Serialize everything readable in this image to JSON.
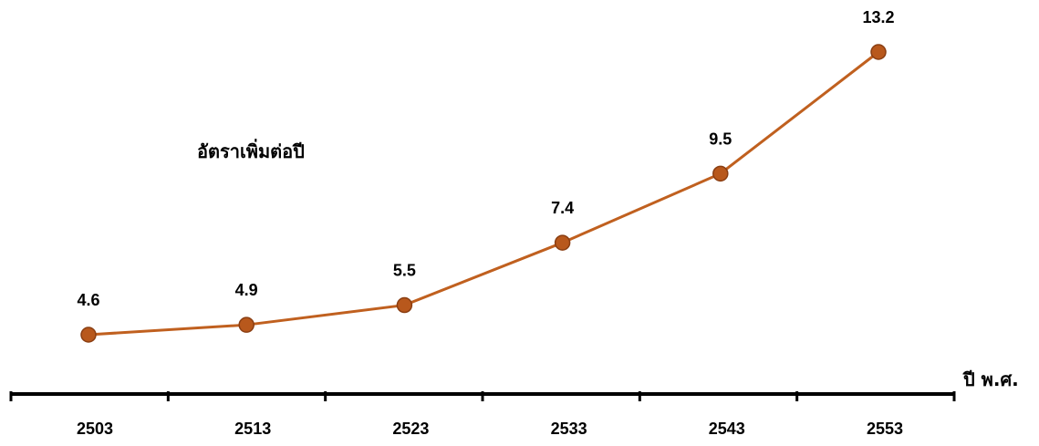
{
  "chart_data": {
    "type": "line",
    "x": [
      "2503",
      "2513",
      "2523",
      "2533",
      "2543",
      "2553"
    ],
    "series": [
      {
        "name": "อัตราเพิ่มต่อปี",
        "values": [
          4.6,
          4.9,
          5.5,
          7.4,
          9.5,
          13.2
        ],
        "data_labels": [
          "4.6",
          "4.9",
          "5.5",
          "7.4",
          "9.5",
          "13.2"
        ]
      }
    ],
    "xlabel": "ปี พ.ศ.",
    "ylabel": "",
    "ylim": [
      4.0,
      13.5
    ],
    "grid": false,
    "line_color": "#c0601f",
    "marker_color": "#b8581c",
    "marker_edge": "#8a3e12"
  }
}
